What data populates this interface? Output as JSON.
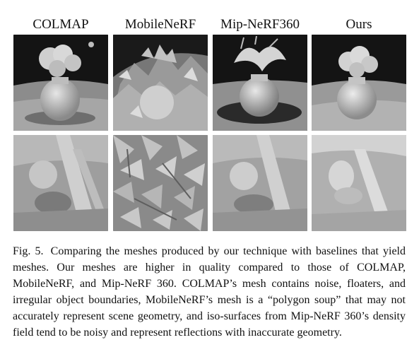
{
  "figure": {
    "columns": [
      "COLMAP",
      "MobileNeRF",
      "Mip-NeRF360",
      "Ours"
    ],
    "caption_label": "Fig. 5.",
    "caption_text": "Comparing the meshes produced by our technique with baselines that yield meshes. Our meshes are higher in quality compared to those of COLMAP, MobileNeRF, and Mip-NeRF 360. COLMAP’s mesh contains noise, floaters, and irregular object boundaries, MobileNeRF’s mesh is a “polygon soup” that may not accurately represent scene geometry, and iso-surfaces from Mip-NeRF 360’s density field tend to be noisy and represent reflections with inaccurate geometry."
  }
}
